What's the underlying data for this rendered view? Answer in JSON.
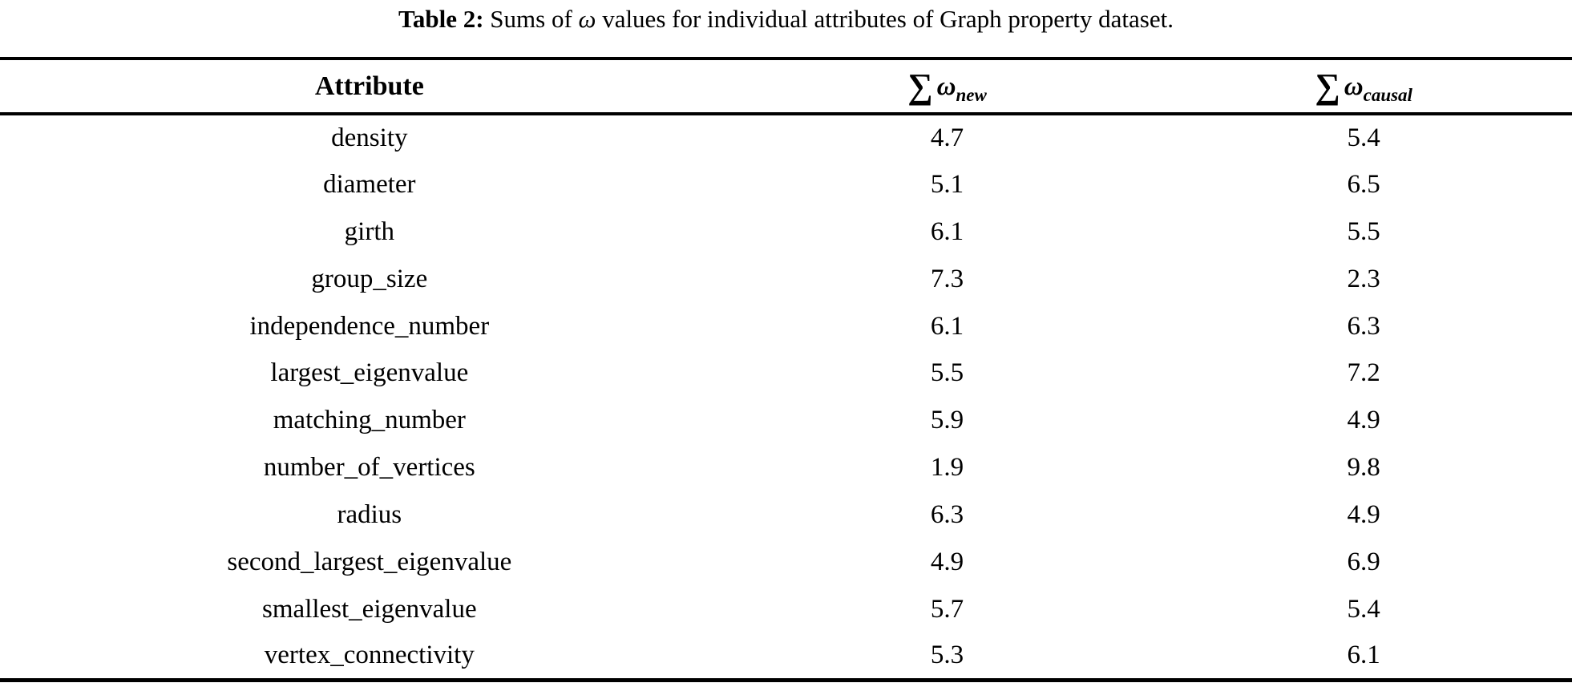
{
  "caption": {
    "label": "Table 2:",
    "pre_omega": " Sums of ",
    "omega": "ω",
    "post_omega": " values for individual attributes of Graph property dataset."
  },
  "table": {
    "headers": {
      "attribute": "Attribute",
      "omega_new": {
        "sum": "∑",
        "omega": "ω",
        "sub": "new"
      },
      "omega_causal": {
        "sum": "∑",
        "omega": "ω",
        "sub": "causal"
      }
    },
    "rows": [
      {
        "attribute": "density",
        "omega_new": "4.7",
        "omega_causal": "5.4"
      },
      {
        "attribute": "diameter",
        "omega_new": "5.1",
        "omega_causal": "6.5"
      },
      {
        "attribute": "girth",
        "omega_new": "6.1",
        "omega_causal": "5.5"
      },
      {
        "attribute": "group_size",
        "omega_new": "7.3",
        "omega_causal": "2.3"
      },
      {
        "attribute": "independence_number",
        "omega_new": "6.1",
        "omega_causal": "6.3"
      },
      {
        "attribute": "largest_eigenvalue",
        "omega_new": "5.5",
        "omega_causal": "7.2"
      },
      {
        "attribute": "matching_number",
        "omega_new": "5.9",
        "omega_causal": "4.9"
      },
      {
        "attribute": "number_of_vertices",
        "omega_new": "1.9",
        "omega_causal": "9.8"
      },
      {
        "attribute": "radius",
        "omega_new": "6.3",
        "omega_causal": "4.9"
      },
      {
        "attribute": "second_largest_eigenvalue",
        "omega_new": "4.9",
        "omega_causal": "6.9"
      },
      {
        "attribute": "smallest_eigenvalue",
        "omega_new": "5.7",
        "omega_causal": "5.4"
      },
      {
        "attribute": "vertex_connectivity",
        "omega_new": "5.3",
        "omega_causal": "6.1"
      }
    ]
  }
}
